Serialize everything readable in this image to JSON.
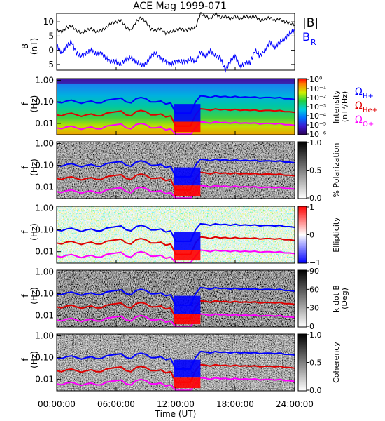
{
  "chart_data": [
    {
      "id": "mag",
      "type": "line",
      "title": "ACE Mag 1999-071",
      "ylabel_main": "B",
      "ylabel_unit": "(nT)",
      "ylim": [
        -7,
        13
      ],
      "yticks": [
        -5,
        0,
        5,
        10
      ],
      "x": [
        0,
        0.5,
        1,
        1.5,
        2,
        2.5,
        3,
        3.5,
        4,
        4.5,
        5,
        5.5,
        6,
        6.5,
        7,
        7.5,
        8,
        8.5,
        9,
        9.5,
        10,
        10.5,
        11,
        11.5,
        12,
        12.5,
        13,
        13.5,
        14,
        14.5,
        15,
        15.5,
        16,
        16.5,
        17,
        17.5,
        18,
        18.5,
        19,
        19.5,
        20,
        20.5,
        21,
        21.5,
        22,
        22.5,
        23,
        23.5,
        24
      ],
      "series": [
        {
          "name": "|B|",
          "color": "#000000",
          "values": [
            7,
            6.5,
            8,
            8.5,
            7,
            6,
            7,
            7.5,
            6.5,
            7,
            8,
            9.5,
            10,
            10.5,
            8,
            7,
            10,
            11.5,
            10,
            7.5,
            7,
            7.5,
            6,
            6.5,
            7,
            7.5,
            7,
            7.5,
            8,
            13,
            12,
            11,
            13,
            11.5,
            12,
            11,
            12,
            11,
            12,
            11.5,
            12,
            10.5,
            11,
            11.5,
            10.5,
            11,
            10,
            9.5,
            9
          ]
        },
        {
          "name": "BR",
          "label_main": "B",
          "label_sub": "R",
          "color": "#0000ff",
          "values": [
            2,
            -1,
            1.5,
            3,
            -1,
            -2,
            -1,
            0,
            -1.5,
            -1,
            -3,
            -4,
            -4,
            -5,
            -3,
            -2.5,
            -4,
            -5,
            -5,
            -2,
            -1,
            -3,
            -4,
            -5,
            -4,
            -4,
            -4,
            -3,
            -4,
            -0.5,
            -2,
            0,
            -2,
            -2.5,
            -7,
            -4,
            -2,
            -6,
            -4.5,
            -4.5,
            0,
            -2,
            0,
            3,
            1,
            3,
            4,
            6,
            7
          ]
        }
      ]
    },
    {
      "id": "intensity",
      "type": "heatmap",
      "ylabel_main": "f",
      "ylabel_unit": "(Hz)",
      "ylim": [
        0.003,
        1.2
      ],
      "yscale": "log",
      "yticks": [
        "1.00",
        "0.10",
        "0.01"
      ],
      "colorbar": {
        "label": "Intensity",
        "unit": "(nT²/Hz)",
        "ticks": [
          "10⁰",
          "10⁻¹",
          "10⁻²",
          "10⁻³",
          "10⁻⁴",
          "10⁻⁵",
          "10⁻⁶"
        ],
        "colormap": "rainbow"
      },
      "legend": [
        {
          "main": "Ω",
          "sub": "H+",
          "color": "#0000ff"
        },
        {
          "main": "Ω",
          "sub": "He+",
          "color": "#e00000"
        },
        {
          "main": "Ω",
          "sub": "O+",
          "color": "#ff00ff"
        }
      ]
    },
    {
      "id": "polarization",
      "type": "heatmap",
      "ylabel_main": "f",
      "ylabel_unit": "(Hz)",
      "yticks": [
        "1.00",
        "0.10",
        "0.01"
      ],
      "colorbar": {
        "label": "% Polarization",
        "ticks": [
          "1.0",
          "0.5",
          "0.0"
        ],
        "colormap": "gray"
      }
    },
    {
      "id": "ellipticity",
      "type": "heatmap",
      "ylabel_main": "f",
      "ylabel_unit": "(Hz)",
      "yticks": [
        "1.00",
        "0.10",
        "0.01"
      ],
      "colorbar": {
        "label": "Ellipticity",
        "ticks": [
          "1",
          "0",
          "−1"
        ],
        "colormap": "bluewhitered"
      }
    },
    {
      "id": "kdotb",
      "type": "heatmap",
      "ylabel_main": "f",
      "ylabel_unit": "(Hz)",
      "yticks": [
        "1.00",
        "0.10",
        "0.01"
      ],
      "colorbar": {
        "label": "k dot B",
        "unit": "(Deg)",
        "ticks": [
          "90",
          "60",
          "30",
          "0"
        ],
        "colormap": "gray"
      }
    },
    {
      "id": "coherency",
      "type": "heatmap",
      "ylabel_main": "f",
      "ylabel_unit": "(Hz)",
      "yticks": [
        "1.00",
        "0.10",
        "0.01"
      ],
      "colorbar": {
        "label": "Coherency",
        "ticks": [
          "1.0",
          "0.5",
          "0.0"
        ],
        "colormap": "gray"
      }
    }
  ],
  "gyrofrequency": {
    "hours": [
      0,
      0.5,
      1,
      1.5,
      2,
      2.5,
      3,
      3.5,
      4,
      4.5,
      5,
      5.5,
      6,
      6.5,
      7,
      7.5,
      8,
      8.5,
      9,
      9.5,
      10,
      10.5,
      11,
      11.5,
      12,
      12.5,
      13,
      13.5,
      14,
      14.5,
      15,
      15.5,
      16,
      16.5,
      17,
      17.5,
      18,
      18.5,
      19,
      19.5,
      20,
      20.5,
      21,
      21.5,
      22,
      22.5,
      23,
      23.5,
      24
    ],
    "H_plus_hz": [
      0.1,
      0.09,
      0.11,
      0.12,
      0.1,
      0.085,
      0.1,
      0.11,
      0.09,
      0.09,
      0.12,
      0.13,
      0.14,
      0.15,
      0.1,
      0.09,
      0.14,
      0.16,
      0.14,
      0.1,
      0.1,
      0.11,
      0.08,
      0.09,
      0.03,
      0.03,
      0.03,
      0.03,
      0.1,
      0.19,
      0.18,
      0.16,
      0.19,
      0.17,
      0.18,
      0.16,
      0.18,
      0.16,
      0.17,
      0.16,
      0.17,
      0.15,
      0.16,
      0.16,
      0.15,
      0.16,
      0.14,
      0.14,
      0.13
    ]
  },
  "xaxis": {
    "ticks": [
      "00:00:00",
      "06:00:00",
      "12:00:00",
      "18:00:00",
      "24:00:00"
    ],
    "label": "Time (UT)"
  }
}
